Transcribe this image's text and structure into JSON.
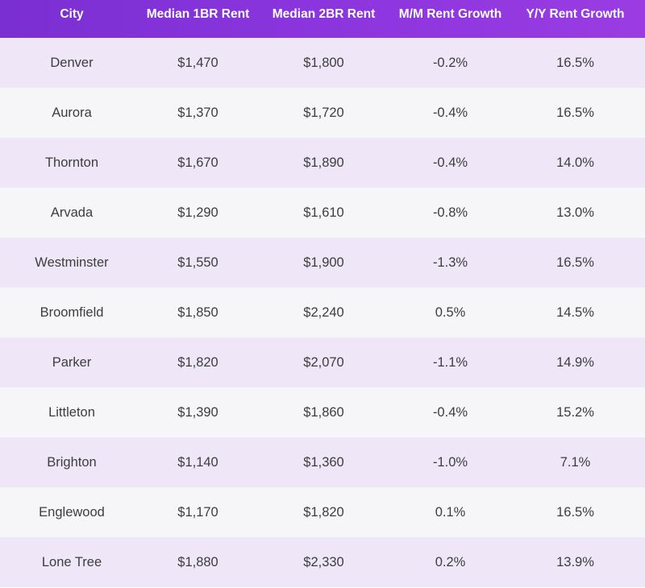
{
  "table": {
    "headers": {
      "city": "City",
      "median_1br": "Median 1BR Rent",
      "median_2br": "Median 2BR Rent",
      "mm_growth": "M/M Rent Growth",
      "yy_growth": "Y/Y Rent Growth"
    },
    "rows": [
      {
        "city": "Denver",
        "median_1br": "$1,470",
        "median_2br": "$1,800",
        "mm_growth": "-0.2%",
        "yy_growth": "16.5%"
      },
      {
        "city": "Aurora",
        "median_1br": "$1,370",
        "median_2br": "$1,720",
        "mm_growth": "-0.4%",
        "yy_growth": "16.5%"
      },
      {
        "city": "Thornton",
        "median_1br": "$1,670",
        "median_2br": "$1,890",
        "mm_growth": "-0.4%",
        "yy_growth": "14.0%"
      },
      {
        "city": "Arvada",
        "median_1br": "$1,290",
        "median_2br": "$1,610",
        "mm_growth": "-0.8%",
        "yy_growth": "13.0%"
      },
      {
        "city": "Westminster",
        "median_1br": "$1,550",
        "median_2br": "$1,900",
        "mm_growth": "-1.3%",
        "yy_growth": "16.5%"
      },
      {
        "city": "Broomfield",
        "median_1br": "$1,850",
        "median_2br": "$2,240",
        "mm_growth": "0.5%",
        "yy_growth": "14.5%"
      },
      {
        "city": "Parker",
        "median_1br": "$1,820",
        "median_2br": "$2,070",
        "mm_growth": "-1.1%",
        "yy_growth": "14.9%"
      },
      {
        "city": "Littleton",
        "median_1br": "$1,390",
        "median_2br": "$1,860",
        "mm_growth": "-0.4%",
        "yy_growth": "15.2%"
      },
      {
        "city": "Brighton",
        "median_1br": "$1,140",
        "median_2br": "$1,360",
        "mm_growth": "-1.0%",
        "yy_growth": "7.1%"
      },
      {
        "city": "Englewood",
        "median_1br": "$1,170",
        "median_2br": "$1,820",
        "mm_growth": "0.1%",
        "yy_growth": "16.5%"
      },
      {
        "city": "Lone Tree",
        "median_1br": "$1,880",
        "median_2br": "$2,330",
        "mm_growth": "0.2%",
        "yy_growth": "13.9%"
      }
    ]
  },
  "colors": {
    "header_bg": "#8b35de",
    "header_text": "#ffffff",
    "row_odd_bg": "#efe6f8",
    "row_even_bg": "#f6f5f7",
    "cell_text": "#3d3d3d"
  }
}
